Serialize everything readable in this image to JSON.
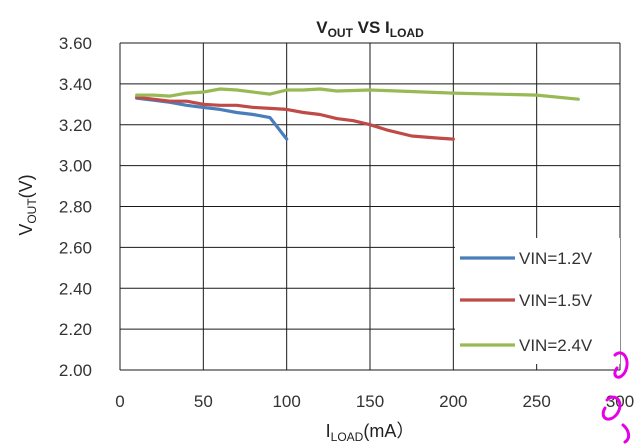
{
  "chart_data": {
    "type": "line",
    "title": {
      "main": "V",
      "main_sub": "OUT",
      "mid": " VS I",
      "mid_sub": "LOAD"
    },
    "xlabel": {
      "main": "I",
      "sub": "LOAD",
      "rest": "(mA）"
    },
    "ylabel": {
      "main": "V",
      "sub": "OUT",
      "rest": "(V)"
    },
    "xlim": [
      0,
      300
    ],
    "ylim": [
      2.0,
      3.6
    ],
    "x_ticks": [
      "0",
      "50",
      "100",
      "150",
      "200",
      "250",
      "300"
    ],
    "x_tick_values": [
      0,
      50,
      100,
      150,
      200,
      250,
      300
    ],
    "y_ticks": [
      "2.00",
      "2.20",
      "2.40",
      "2.60",
      "2.80",
      "3.00",
      "3.20",
      "3.40",
      "3.60"
    ],
    "y_tick_values": [
      2.0,
      2.2,
      2.4,
      2.6,
      2.8,
      3.0,
      3.2,
      3.4,
      3.6
    ],
    "grid": true,
    "legend_position": "bottom-right",
    "series": [
      {
        "name": "VIN=1.2V",
        "color": "#4a7ebb",
        "x": [
          10,
          20,
          30,
          40,
          50,
          60,
          70,
          80,
          90,
          100
        ],
        "y": [
          3.33,
          3.32,
          3.31,
          3.295,
          3.285,
          3.275,
          3.26,
          3.25,
          3.235,
          3.13
        ]
      },
      {
        "name": "VIN=1.5V",
        "color": "#be4b48",
        "x": [
          10,
          30,
          40,
          50,
          60,
          70,
          80,
          90,
          100,
          110,
          120,
          130,
          140,
          150,
          160,
          175,
          190,
          200
        ],
        "y": [
          3.335,
          3.315,
          3.315,
          3.3,
          3.295,
          3.295,
          3.285,
          3.28,
          3.275,
          3.26,
          3.25,
          3.23,
          3.22,
          3.2,
          3.175,
          3.145,
          3.135,
          3.13
        ]
      },
      {
        "name": "VIN=2.4V",
        "color": "#98b954",
        "x": [
          10,
          20,
          30,
          40,
          50,
          60,
          70,
          80,
          90,
          100,
          110,
          120,
          130,
          150,
          200,
          250,
          275
        ],
        "y": [
          3.345,
          3.345,
          3.34,
          3.355,
          3.36,
          3.375,
          3.37,
          3.36,
          3.35,
          3.37,
          3.37,
          3.375,
          3.365,
          3.37,
          3.355,
          3.345,
          3.325
        ]
      }
    ]
  },
  "watermark": {
    "color": "#e600e6"
  }
}
